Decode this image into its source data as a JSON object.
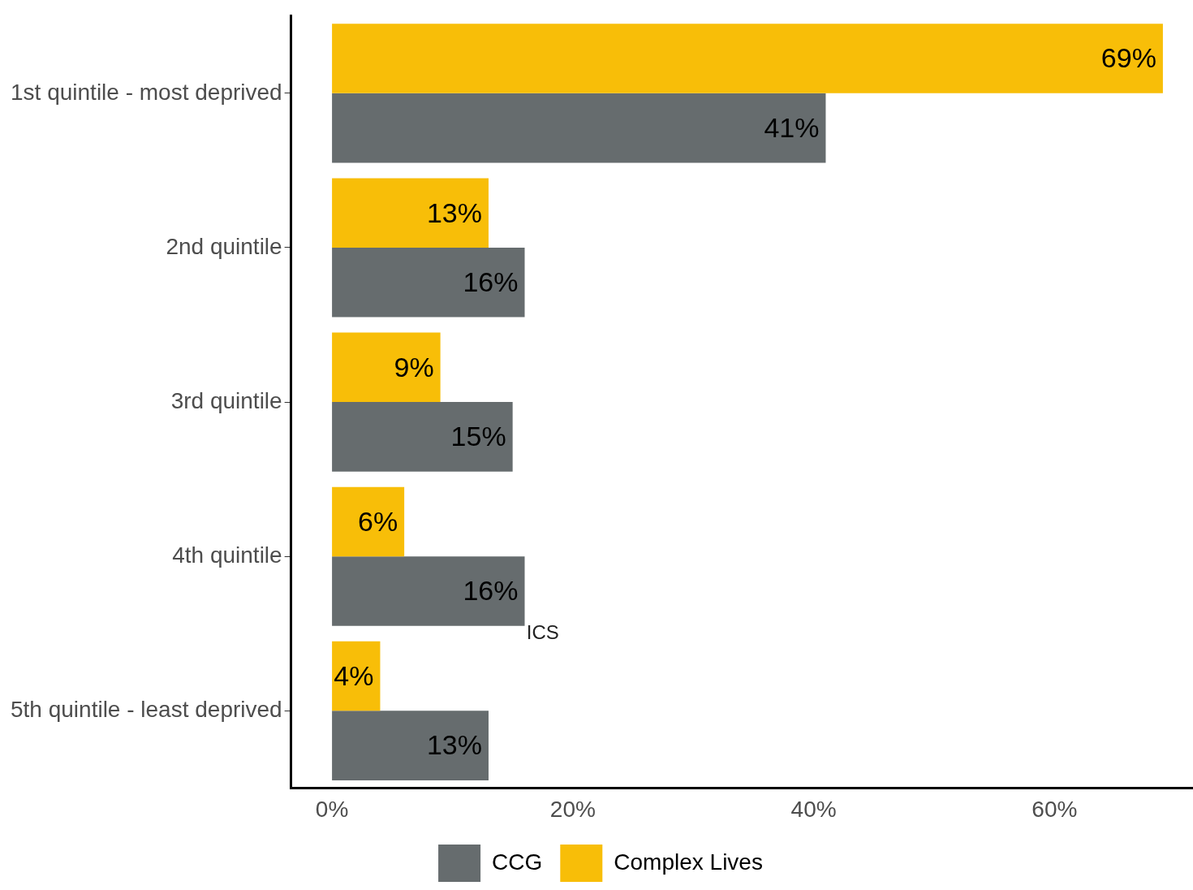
{
  "chart_data": {
    "type": "bar",
    "orientation": "horizontal",
    "categories": [
      "1st quintile - most deprived",
      "2nd quintile",
      "3rd quintile",
      "4th quintile",
      "5th quintile - least deprived"
    ],
    "series": [
      {
        "name": "CCG",
        "color": "#666c6e",
        "values": [
          41,
          16,
          15,
          16,
          13
        ],
        "value_labels": [
          "41%",
          "16%",
          "15%",
          "16%",
          "13%"
        ]
      },
      {
        "name": "Complex Lives",
        "color": "#f8be08",
        "values": [
          69,
          13,
          9,
          6,
          4
        ],
        "value_labels": [
          "69%",
          "13%",
          "9%",
          "6%",
          "4%"
        ]
      }
    ],
    "xlim": [
      -3.4,
      71.5
    ],
    "xticks": [
      {
        "value": 0,
        "label": "0%"
      },
      {
        "value": 20,
        "label": "20%"
      },
      {
        "value": 40,
        "label": "40%"
      },
      {
        "value": 60,
        "label": "60%"
      }
    ],
    "grid": false,
    "legend": "bottom",
    "annotations": [
      "ICS"
    ]
  }
}
